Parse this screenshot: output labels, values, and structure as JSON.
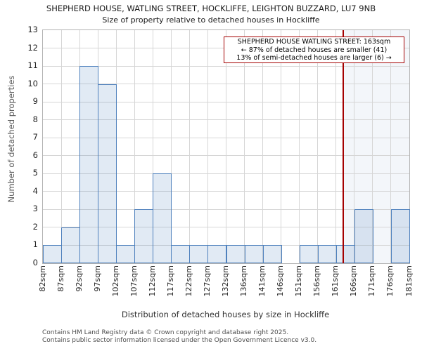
{
  "chart_data": {
    "type": "bar",
    "title": "SHEPHERD HOUSE, WATLING STREET, HOCKLIFFE, LEIGHTON BUZZARD, LU7 9NB",
    "subtitle": "Size of property relative to detached houses in Hockliffe",
    "xlabel": "Distribution of detached houses by size in Hockliffe",
    "ylabel": "Number of detached properties",
    "x_tick_labels": [
      "82sqm",
      "87sqm",
      "92sqm",
      "97sqm",
      "102sqm",
      "107sqm",
      "112sqm",
      "117sqm",
      "122sqm",
      "127sqm",
      "132sqm",
      "136sqm",
      "141sqm",
      "146sqm",
      "151sqm",
      "156sqm",
      "161sqm",
      "166sqm",
      "171sqm",
      "176sqm",
      "181sqm"
    ],
    "bin_edges_sqm": [
      82,
      87,
      92,
      97,
      102,
      107,
      112,
      117,
      122,
      127,
      132,
      136,
      141,
      146,
      151,
      156,
      161,
      166,
      171,
      176,
      181
    ],
    "values": [
      1,
      2,
      11,
      10,
      1,
      3,
      5,
      1,
      1,
      1,
      1,
      1,
      1,
      0,
      1,
      1,
      1,
      3,
      0,
      3
    ],
    "ylim": [
      0,
      13
    ],
    "y_ticks": [
      0,
      1,
      2,
      3,
      4,
      5,
      6,
      7,
      8,
      9,
      10,
      11,
      12,
      13
    ],
    "grid": true,
    "legend": "none",
    "marker": {
      "label": "163sqm",
      "bin_position": 16.4,
      "highlight_right_region": true
    },
    "annotation": {
      "line1": "SHEPHERD HOUSE WATLING STREET: 163sqm",
      "line2": "← 87% of detached houses are smaller (41)",
      "line3": "13% of semi-detached houses are larger (6) →"
    },
    "colors": {
      "bar_fill": "rgba(79,129,189,0.17)",
      "bar_edge": "#4f81bd",
      "marker_line": "#a40000",
      "annotation_border": "#a40000",
      "shade_fill": "rgba(79,129,189,0.07)",
      "gridline": "#d6d6d6"
    }
  },
  "footer": {
    "line1": "Contains HM Land Registry data © Crown copyright and database right 2025.",
    "line2": "Contains public sector information licensed under the Open Government Licence v3.0."
  }
}
